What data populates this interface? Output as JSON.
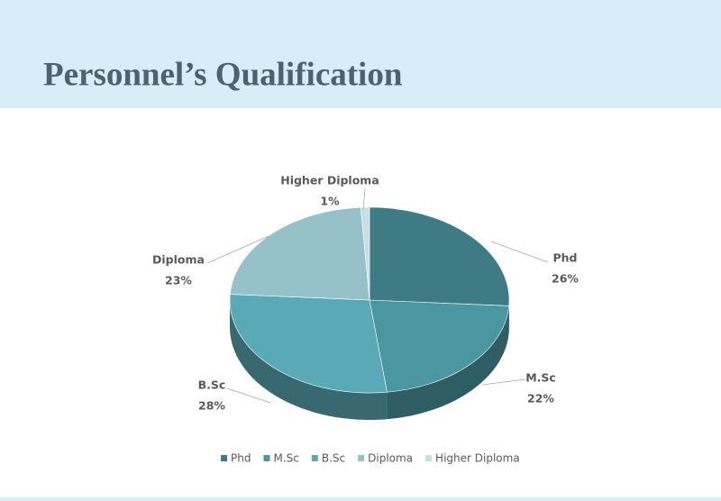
{
  "chart_data": {
    "type": "pie",
    "title": "Personnel’s Qualification",
    "categories": [
      "Phd",
      "M.Sc",
      "B.Sc",
      "Diploma",
      "Higher Diploma"
    ],
    "values": [
      26,
      22,
      28,
      23,
      1
    ],
    "value_labels": [
      "26%",
      "22%",
      "28%",
      "23%",
      "1%"
    ],
    "colors": [
      "#3e7b84",
      "#4a96a1",
      "#5aa9b6",
      "#97c1c9",
      "#c6dfe4"
    ],
    "legend": "bottom"
  }
}
